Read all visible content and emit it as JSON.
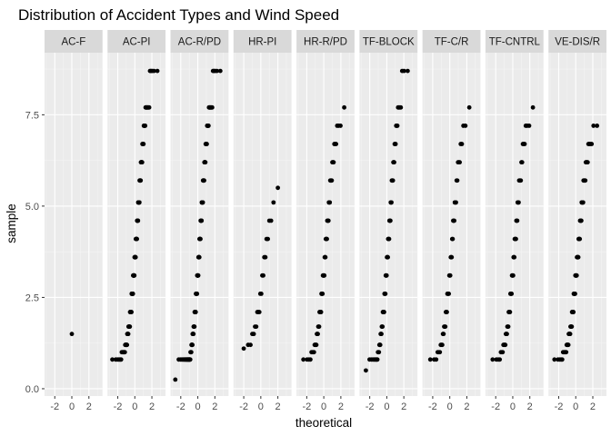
{
  "chart_data": {
    "type": "scatter",
    "title": "Distribution of Accident Types and Wind Speed",
    "xlabel": "theoretical",
    "ylabel": "sample",
    "xlim": [
      -3.2,
      3.6
    ],
    "ylim": [
      -0.2,
      9.2
    ],
    "x_ticks": [
      -2,
      0,
      2
    ],
    "x_tick_labels": [
      "-2",
      "0",
      "2"
    ],
    "y_ticks": [
      0,
      2.5,
      5,
      7.5
    ],
    "y_tick_labels": [
      "0.0",
      "2.5",
      "5.0",
      "7.5"
    ],
    "grid": true,
    "facets": [
      {
        "name": "AC-F",
        "n": 1,
        "min": 1.5,
        "max": 1.5
      },
      {
        "name": "AC-PI",
        "n": 120,
        "min": 0.8,
        "max": 8.7
      },
      {
        "name": "AC-R/PD",
        "n": 120,
        "min": 0.25,
        "max": 8.7
      },
      {
        "name": "HR-PI",
        "n": 22,
        "min": 1.1,
        "max": 5.5
      },
      {
        "name": "HR-R/PD",
        "n": 60,
        "min": 0.8,
        "max": 7.7
      },
      {
        "name": "TF-BLOCK",
        "n": 70,
        "min": 0.5,
        "max": 8.7
      },
      {
        "name": "TF-C/R",
        "n": 45,
        "min": 0.8,
        "max": 7.7
      },
      {
        "name": "TF-CNTRL",
        "n": 55,
        "min": 0.8,
        "max": 7.7
      },
      {
        "name": "VE-DIS/R",
        "n": 80,
        "min": 0.8,
        "max": 7.2
      }
    ]
  }
}
